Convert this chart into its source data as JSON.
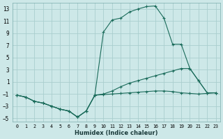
{
  "xlabel": "Humidex (Indice chaleur)",
  "bg_color": "#cde8e8",
  "line_color": "#1a6b5a",
  "grid_color": "#aacece",
  "xlim": [
    -0.5,
    23.5
  ],
  "ylim": [
    -5.5,
    14.0
  ],
  "xticks": [
    0,
    1,
    2,
    3,
    4,
    5,
    6,
    7,
    8,
    9,
    10,
    11,
    12,
    13,
    14,
    15,
    16,
    17,
    18,
    19,
    20,
    21,
    22,
    23
  ],
  "yticks": [
    -5,
    -3,
    -1,
    1,
    3,
    5,
    7,
    9,
    11,
    13
  ],
  "line1_x": [
    0,
    1,
    2,
    3,
    4,
    5,
    6,
    7,
    8,
    9,
    10,
    11,
    12,
    13,
    14,
    15,
    16,
    17,
    18,
    19,
    20,
    21,
    22,
    23
  ],
  "line1_y": [
    -1.2,
    -1.5,
    -2.2,
    -2.5,
    -3.0,
    -3.5,
    -3.8,
    -4.8,
    -3.8,
    -1.2,
    9.2,
    11.2,
    11.5,
    12.5,
    13.0,
    13.4,
    13.5,
    11.5,
    7.2,
    7.2,
    3.2,
    1.2,
    -0.8,
    -0.8
  ],
  "line2_x": [
    0,
    1,
    2,
    3,
    4,
    5,
    6,
    7,
    8,
    9,
    10,
    11,
    12,
    13,
    14,
    15,
    16,
    17,
    18,
    19,
    20,
    21,
    22,
    23
  ],
  "line2_y": [
    -1.2,
    -1.5,
    -2.2,
    -2.5,
    -3.0,
    -3.5,
    -3.8,
    -4.8,
    -3.8,
    -1.2,
    -1.0,
    -0.5,
    0.2,
    0.8,
    1.2,
    1.6,
    2.0,
    2.4,
    2.8,
    3.2,
    3.2,
    1.2,
    -0.8,
    -0.8
  ],
  "line3_x": [
    0,
    1,
    2,
    3,
    4,
    5,
    6,
    7,
    8,
    9,
    10,
    11,
    12,
    13,
    14,
    15,
    16,
    17,
    18,
    19,
    20,
    21,
    22,
    23
  ],
  "line3_y": [
    -1.2,
    -1.5,
    -2.2,
    -2.5,
    -3.0,
    -3.5,
    -3.8,
    -4.8,
    -3.8,
    -1.2,
    -1.1,
    -1.0,
    -0.9,
    -0.8,
    -0.7,
    -0.6,
    -0.5,
    -0.5,
    -0.6,
    -0.8,
    -0.9,
    -1.0,
    -0.9,
    -0.8
  ]
}
